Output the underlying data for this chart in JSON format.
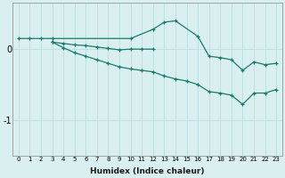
{
  "xlabel": "Humidex (Indice chaleur)",
  "series1_x": [
    0,
    1,
    2,
    3,
    10,
    12,
    13,
    14,
    16,
    17,
    18,
    19,
    20,
    21,
    22,
    23
  ],
  "series1_y": [
    0.15,
    0.15,
    0.15,
    0.15,
    0.15,
    0.28,
    0.38,
    0.4,
    0.18,
    -0.1,
    -0.12,
    -0.15,
    -0.3,
    -0.18,
    -0.22,
    -0.2
  ],
  "series2_x": [
    3,
    4,
    5,
    6,
    7,
    8,
    9,
    10,
    11,
    12
  ],
  "series2_y": [
    0.1,
    0.08,
    0.06,
    0.05,
    0.03,
    0.01,
    -0.01,
    0.0,
    0.0,
    0.0
  ],
  "series3_x": [
    3,
    4,
    5,
    6,
    7,
    8,
    9,
    10,
    11,
    12,
    13,
    14,
    15,
    16,
    17,
    18,
    19,
    20,
    21,
    22,
    23
  ],
  "series3_y": [
    0.1,
    0.02,
    -0.05,
    -0.1,
    -0.15,
    -0.2,
    -0.25,
    -0.28,
    -0.3,
    -0.32,
    -0.38,
    -0.42,
    -0.45,
    -0.5,
    -0.6,
    -0.62,
    -0.65,
    -0.78,
    -0.62,
    -0.62,
    -0.57
  ],
  "color": "#1a7a6e",
  "bg_color": "#daf0f0",
  "grid_major_color": "#b8dede",
  "grid_minor_color": "#ceeaea",
  "ylim": [
    -1.5,
    0.65
  ],
  "yticks": [
    0,
    -1
  ],
  "xlim": [
    -0.5,
    23.5
  ]
}
